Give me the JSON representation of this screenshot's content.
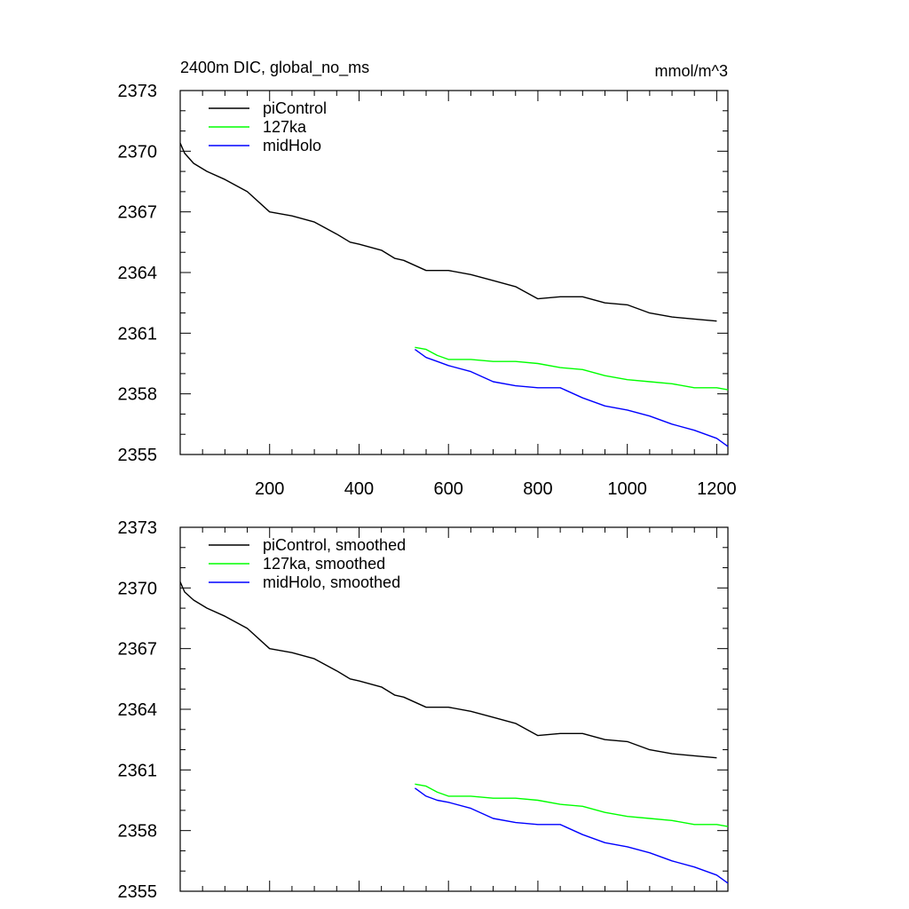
{
  "chart_data": [
    {
      "type": "line",
      "title": "2400m DIC, global_no_ms",
      "units": "mmol/m^3",
      "xlabel": "",
      "ylabel": "",
      "xlim": [
        0,
        1225
      ],
      "ylim": [
        2355,
        2373
      ],
      "yticks": [
        2355,
        2358,
        2361,
        2364,
        2367,
        2370,
        2373
      ],
      "ytick_labels": [
        "2355",
        "2358",
        "2361",
        "2364",
        "2367",
        "2370",
        "2373"
      ],
      "xticks": [
        200,
        400,
        600,
        800,
        1000,
        1200
      ],
      "xtick_labels": [
        "200",
        "400",
        "600",
        "800",
        "1000",
        "1200"
      ],
      "legend_position": "top-left",
      "series": [
        {
          "name": "piControl",
          "color": "#000000",
          "x": [
            0,
            10,
            30,
            60,
            100,
            150,
            200,
            250,
            300,
            350,
            380,
            400,
            450,
            480,
            500,
            550,
            600,
            650,
            700,
            750,
            800,
            850,
            900,
            950,
            1000,
            1050,
            1100,
            1150,
            1200
          ],
          "y": [
            2370.4,
            2369.9,
            2369.4,
            2369.0,
            2368.6,
            2368.0,
            2367.0,
            2366.8,
            2366.5,
            2365.9,
            2365.5,
            2365.4,
            2365.1,
            2364.7,
            2364.6,
            2364.1,
            2364.1,
            2363.9,
            2363.6,
            2363.3,
            2362.7,
            2362.8,
            2362.8,
            2362.5,
            2362.4,
            2362.0,
            2361.8,
            2361.7,
            2361.6
          ]
        },
        {
          "name": "127ka",
          "color": "#00ff00",
          "x": [
            525,
            550,
            575,
            600,
            650,
            700,
            750,
            800,
            850,
            900,
            950,
            1000,
            1050,
            1100,
            1150,
            1200,
            1225
          ],
          "y": [
            2360.3,
            2360.2,
            2359.9,
            2359.7,
            2359.7,
            2359.6,
            2359.6,
            2359.5,
            2359.3,
            2359.2,
            2358.9,
            2358.7,
            2358.6,
            2358.5,
            2358.3,
            2358.3,
            2358.2
          ]
        },
        {
          "name": "midHolo",
          "color": "#0000ff",
          "x": [
            525,
            550,
            575,
            600,
            650,
            700,
            750,
            800,
            850,
            900,
            950,
            1000,
            1050,
            1100,
            1150,
            1200,
            1225
          ],
          "y": [
            2360.2,
            2359.8,
            2359.6,
            2359.4,
            2359.1,
            2358.6,
            2358.4,
            2358.3,
            2358.3,
            2357.8,
            2357.4,
            2357.2,
            2356.9,
            2356.5,
            2356.2,
            2355.8,
            2355.4
          ]
        }
      ]
    },
    {
      "type": "line",
      "title": "",
      "xlabel": "",
      "ylabel": "",
      "xlim": [
        0,
        1225
      ],
      "ylim": [
        2355,
        2373
      ],
      "yticks": [
        2355,
        2358,
        2361,
        2364,
        2367,
        2370,
        2373
      ],
      "ytick_labels": [
        "2355",
        "2358",
        "2361",
        "2364",
        "2367",
        "2370",
        "2373"
      ],
      "xticks": [
        200,
        400,
        600,
        800,
        1000,
        1200
      ],
      "legend_position": "top-left",
      "series": [
        {
          "name": "piControl, smoothed",
          "color": "#000000",
          "x": [
            0,
            10,
            30,
            60,
            100,
            150,
            200,
            250,
            300,
            350,
            380,
            400,
            450,
            480,
            500,
            550,
            600,
            650,
            700,
            750,
            800,
            850,
            900,
            950,
            1000,
            1050,
            1100,
            1150,
            1200
          ],
          "y": [
            2370.3,
            2369.8,
            2369.4,
            2369.0,
            2368.6,
            2368.0,
            2367.0,
            2366.8,
            2366.5,
            2365.9,
            2365.5,
            2365.4,
            2365.1,
            2364.7,
            2364.6,
            2364.1,
            2364.1,
            2363.9,
            2363.6,
            2363.3,
            2362.7,
            2362.8,
            2362.8,
            2362.5,
            2362.4,
            2362.0,
            2361.8,
            2361.7,
            2361.6
          ]
        },
        {
          "name": "127ka, smoothed",
          "color": "#00ff00",
          "x": [
            525,
            550,
            575,
            600,
            650,
            700,
            750,
            800,
            850,
            900,
            950,
            1000,
            1050,
            1100,
            1150,
            1200,
            1225
          ],
          "y": [
            2360.3,
            2360.2,
            2359.9,
            2359.7,
            2359.7,
            2359.6,
            2359.6,
            2359.5,
            2359.3,
            2359.2,
            2358.9,
            2358.7,
            2358.6,
            2358.5,
            2358.3,
            2358.3,
            2358.2
          ]
        },
        {
          "name": "midHolo, smoothed",
          "color": "#0000ff",
          "x": [
            525,
            550,
            575,
            600,
            650,
            700,
            750,
            800,
            850,
            900,
            950,
            1000,
            1050,
            1100,
            1150,
            1200,
            1225
          ],
          "y": [
            2360.1,
            2359.7,
            2359.5,
            2359.4,
            2359.1,
            2358.6,
            2358.4,
            2358.3,
            2358.3,
            2357.8,
            2357.4,
            2357.2,
            2356.9,
            2356.5,
            2356.2,
            2355.8,
            2355.4
          ]
        }
      ]
    }
  ]
}
